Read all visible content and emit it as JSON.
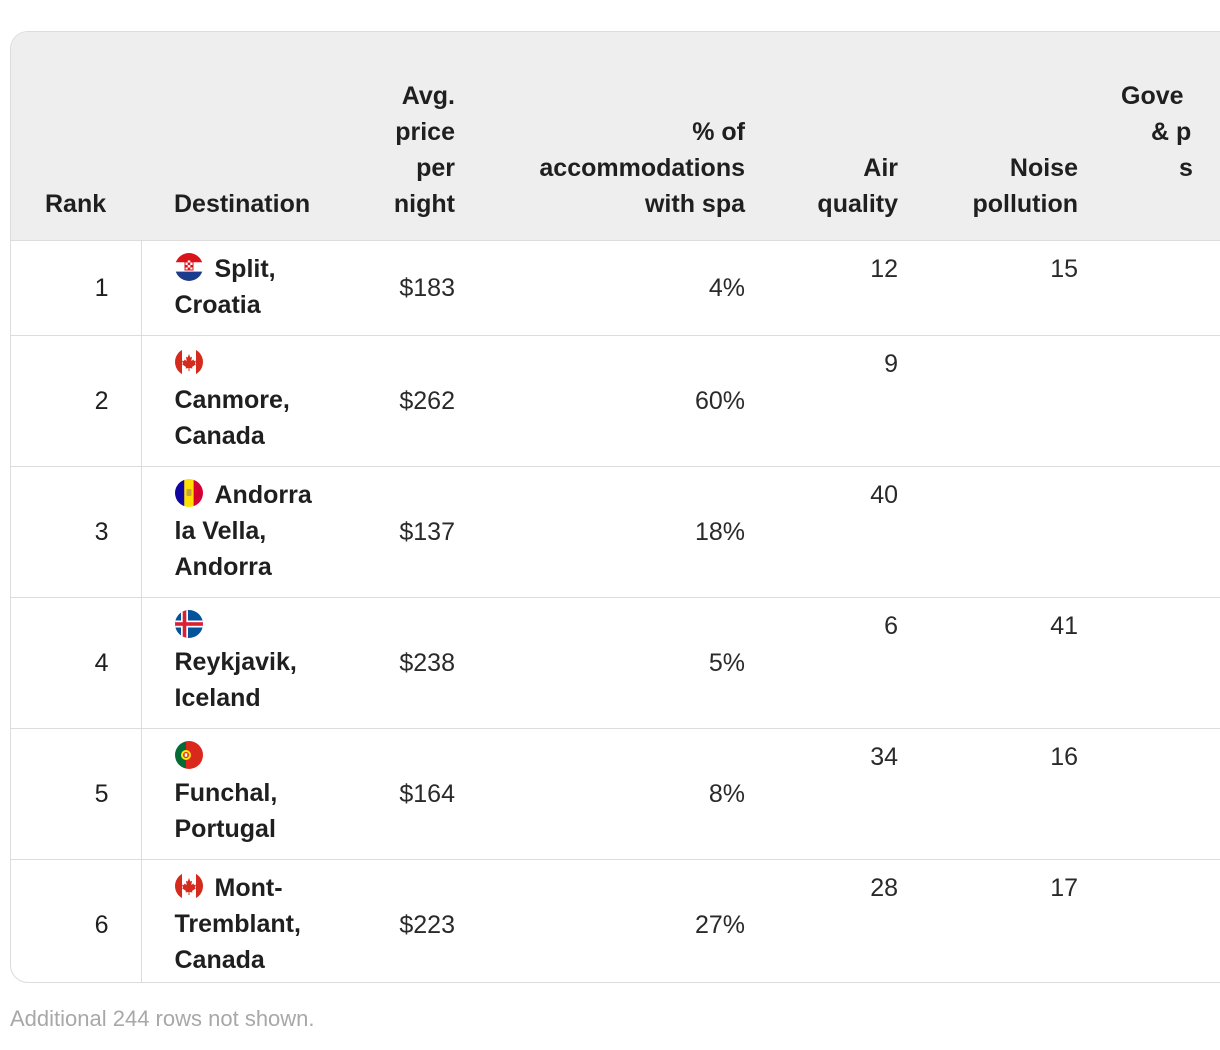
{
  "table": {
    "headers": {
      "rank": "Rank",
      "destination": "Destination",
      "price": [
        "Avg.",
        "price",
        "per",
        "night"
      ],
      "spa": [
        "% of",
        "accommodations",
        "with spa"
      ],
      "air": [
        "Air",
        "quality"
      ],
      "noise": [
        "Noise",
        "pollution"
      ],
      "gov": [
        "Gove",
        "& p",
        "s"
      ]
    },
    "rows": [
      {
        "rank": "1",
        "city": "Split,",
        "country": "Croatia",
        "flag": "croatia-flag",
        "price": "$183",
        "spa": "4%",
        "air": "12",
        "noise": "15"
      },
      {
        "rank": "2",
        "city": "Canmore,",
        "country": "Canada",
        "flag": "canada-flag",
        "price": "$262",
        "spa": "60%",
        "air": "9",
        "noise": ""
      },
      {
        "rank": "3",
        "city": "Andorra",
        "city2": "la Vella,",
        "country": "Andorra",
        "flag": "andorra-flag",
        "price": "$137",
        "spa": "18%",
        "air": "40",
        "noise": ""
      },
      {
        "rank": "4",
        "city": "Reykjavik,",
        "country": "Iceland",
        "flag": "iceland-flag",
        "price": "$238",
        "spa": "5%",
        "air": "6",
        "noise": "41"
      },
      {
        "rank": "5",
        "city": "Funchal,",
        "country": "Portugal",
        "flag": "portugal-flag",
        "price": "$164",
        "spa": "8%",
        "air": "34",
        "noise": "16"
      },
      {
        "rank": "6",
        "city": "Mont-",
        "city2": "Tremblant,",
        "country": "Canada",
        "flag": "canada-flag",
        "price": "$223",
        "spa": "27%",
        "air": "28",
        "noise": "17"
      }
    ]
  },
  "footnote": "Additional 244 rows not shown."
}
